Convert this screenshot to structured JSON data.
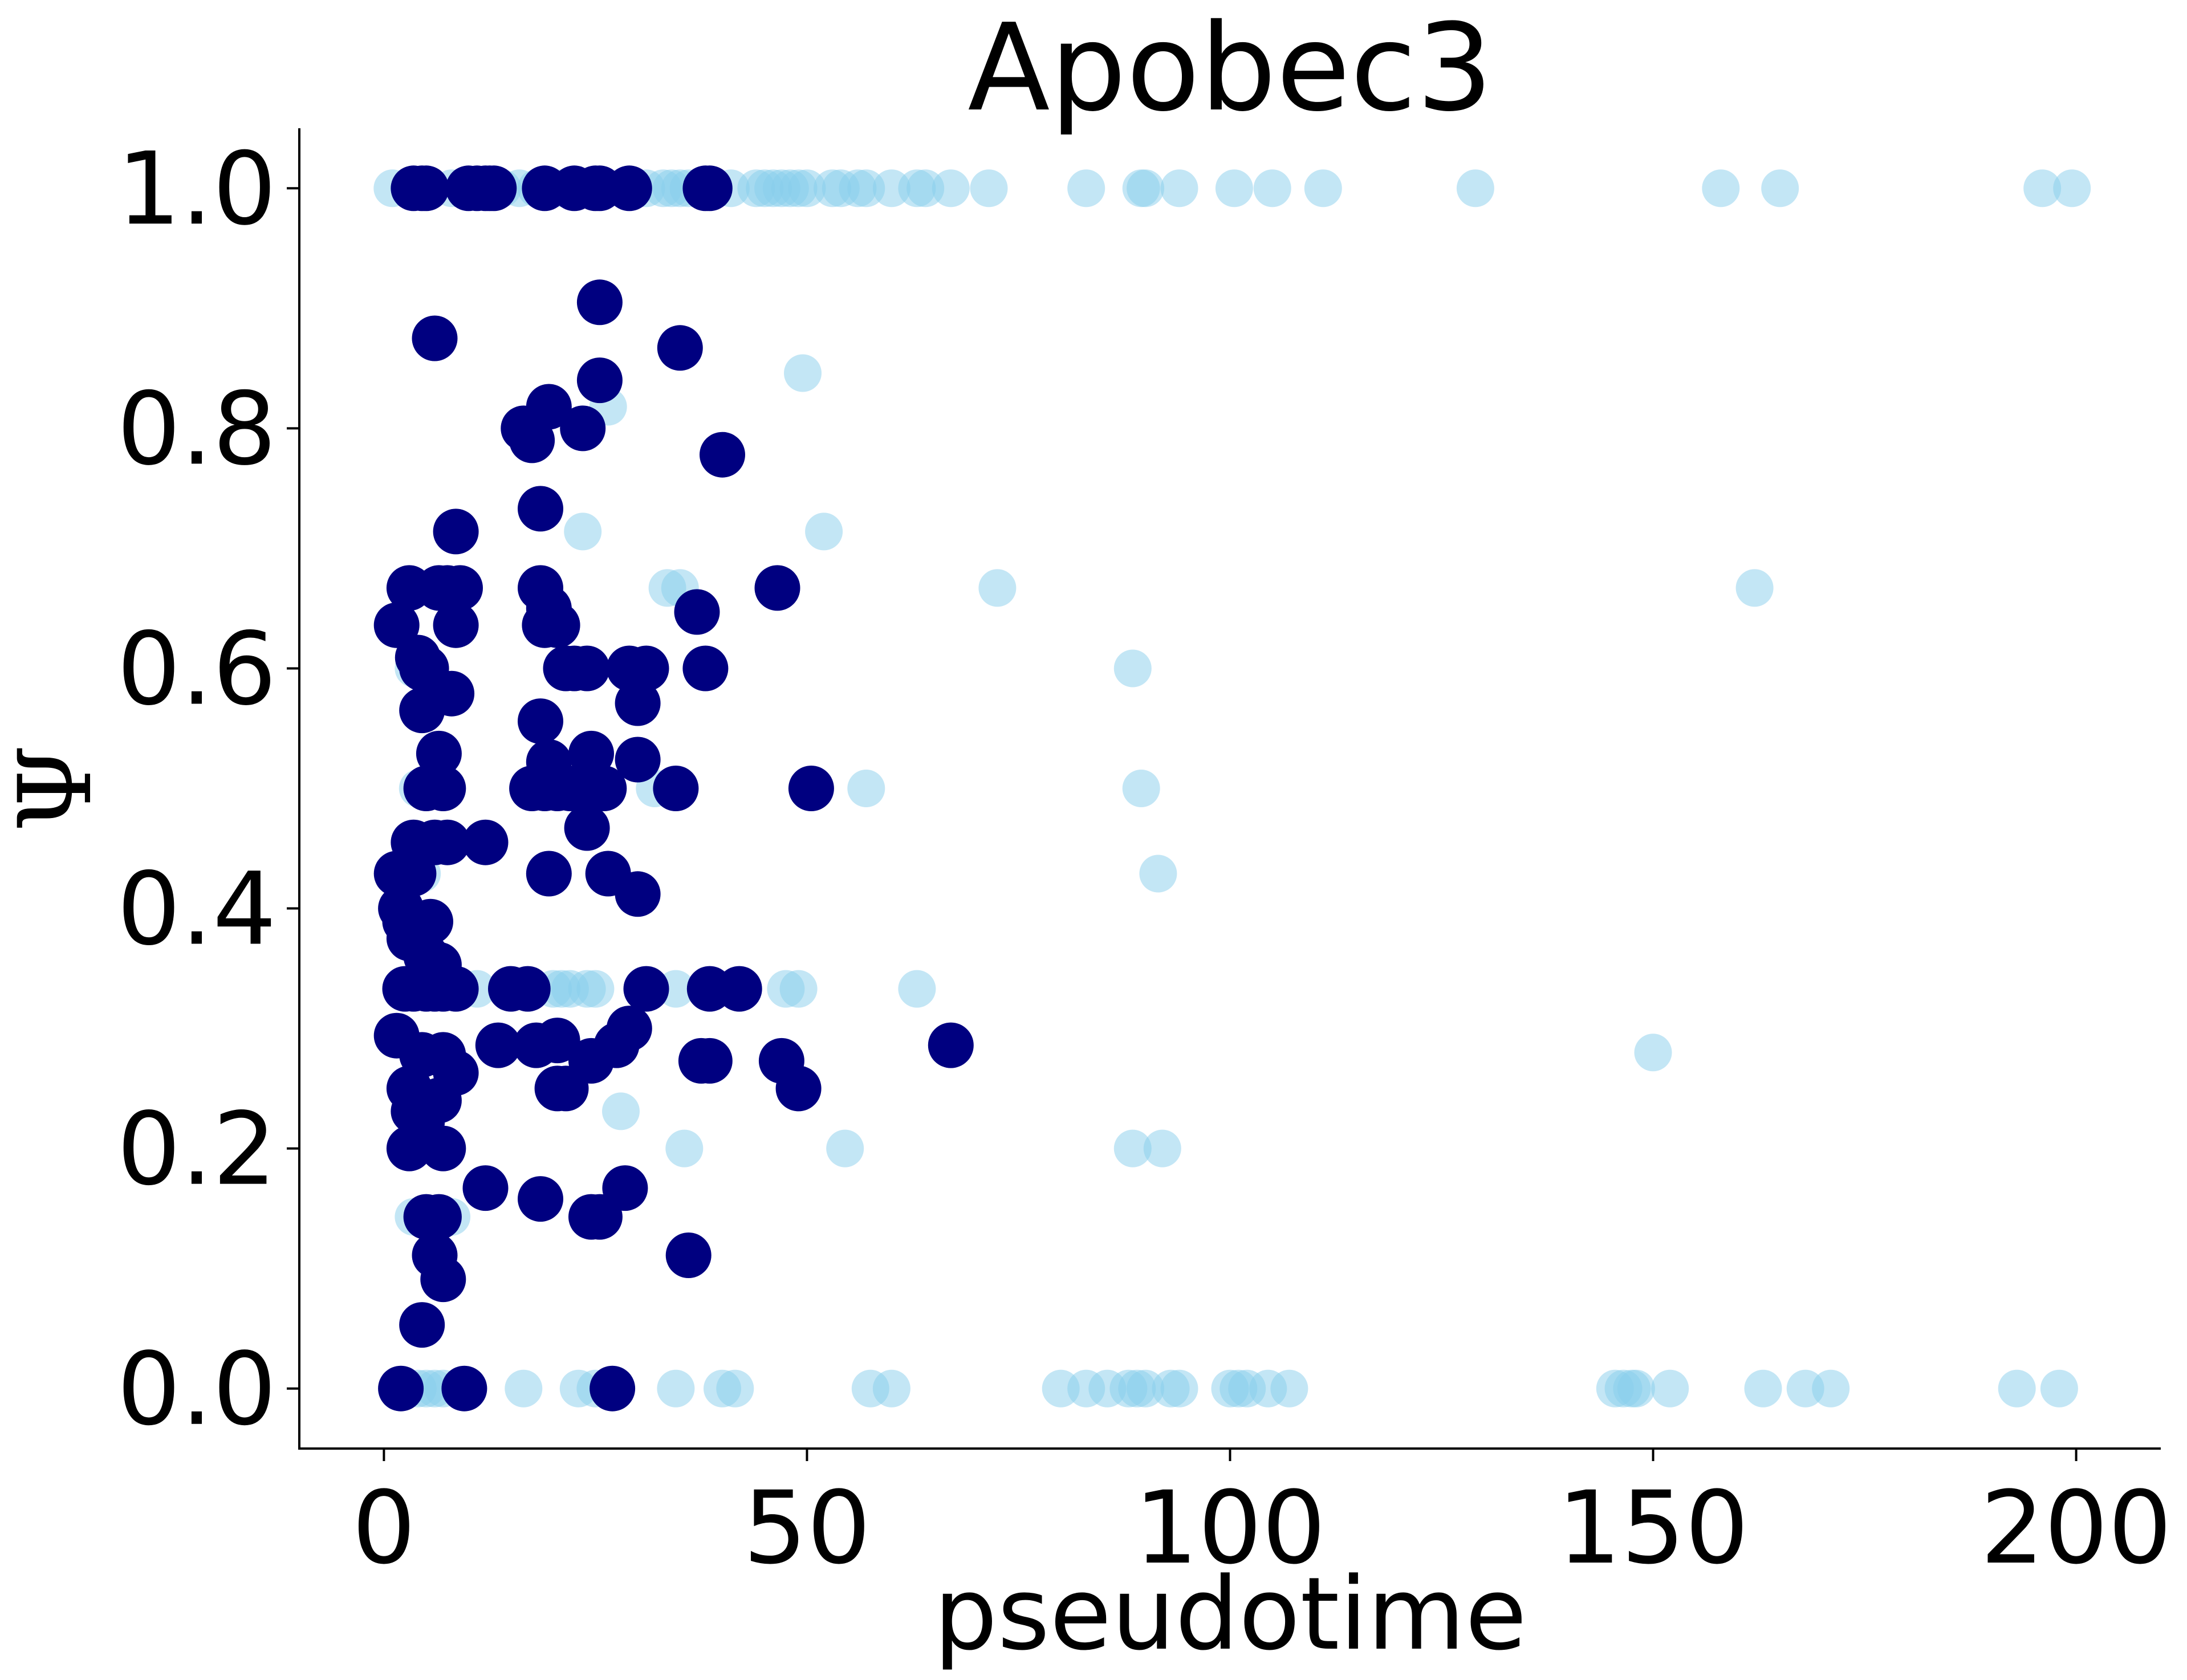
{
  "chart_data": {
    "type": "scatter",
    "title": "Apobec3",
    "xlabel": "pseudotime",
    "ylabel": "Ψ",
    "xlim": [
      -10,
      210
    ],
    "ylim": [
      -0.05,
      1.05
    ],
    "xticks": [
      0,
      50,
      100,
      150,
      200
    ],
    "xtick_labels": [
      "0",
      "50",
      "100",
      "150",
      "200"
    ],
    "yticks": [
      0.0,
      0.2,
      0.4,
      0.6,
      0.8,
      1.0
    ],
    "ytick_labels": [
      "0.0",
      "0.2",
      "0.4",
      "0.6",
      "0.8",
      "1.0"
    ],
    "grid": false,
    "legend": "none",
    "colors": {
      "light": "#87ceeb",
      "dark": "#000080"
    },
    "series": [
      {
        "color": "#87ceeb",
        "opacity": 0.5,
        "points": [
          [
            1,
            1.0
          ],
          [
            3,
            1.0
          ],
          [
            5,
            1.0
          ],
          [
            8,
            1.0
          ],
          [
            10,
            1.0
          ],
          [
            14,
            1.0
          ],
          [
            16,
            1.0
          ],
          [
            18,
            1.0
          ],
          [
            21,
            1.0
          ],
          [
            23,
            1.0
          ],
          [
            26,
            1.0
          ],
          [
            28,
            1.0
          ],
          [
            31,
            1.0
          ],
          [
            33,
            1.0
          ],
          [
            34,
            1.0
          ],
          [
            35,
            1.0
          ],
          [
            36,
            1.0
          ],
          [
            38,
            1.0
          ],
          [
            41,
            1.0
          ],
          [
            44,
            1.0
          ],
          [
            45,
            1.0
          ],
          [
            46,
            1.0
          ],
          [
            47,
            1.0
          ],
          [
            48,
            1.0
          ],
          [
            49,
            1.0
          ],
          [
            50,
            1.0
          ],
          [
            53,
            1.0
          ],
          [
            54,
            1.0
          ],
          [
            56,
            1.0
          ],
          [
            57,
            1.0
          ],
          [
            60,
            1.0
          ],
          [
            63,
            1.0
          ],
          [
            64,
            1.0
          ],
          [
            67,
            1.0
          ],
          [
            71.5,
            1.0
          ],
          [
            83,
            1.0
          ],
          [
            89.5,
            1.0
          ],
          [
            90,
            1.0
          ],
          [
            94,
            1.0
          ],
          [
            100.5,
            1.0
          ],
          [
            105,
            1.0
          ],
          [
            111,
            1.0
          ],
          [
            129,
            1.0
          ],
          [
            158,
            1.0
          ],
          [
            165,
            1.0
          ],
          [
            196,
            1.0
          ],
          [
            199.5,
            1.0
          ],
          [
            49.5,
            0.846
          ],
          [
            26.5,
            0.818
          ],
          [
            23.5,
            0.714
          ],
          [
            52,
            0.714
          ],
          [
            33.5,
            0.667
          ],
          [
            35,
            0.667
          ],
          [
            72.5,
            0.667
          ],
          [
            162,
            0.667
          ],
          [
            88.5,
            0.6
          ],
          [
            3.5,
            0.6
          ],
          [
            4,
            0.5
          ],
          [
            32,
            0.5
          ],
          [
            57,
            0.5
          ],
          [
            89.5,
            0.5
          ],
          [
            91.5,
            0.429
          ],
          [
            4.5,
            0.429
          ],
          [
            11,
            0.333
          ],
          [
            20,
            0.333
          ],
          [
            21,
            0.333
          ],
          [
            22,
            0.333
          ],
          [
            24,
            0.333
          ],
          [
            25,
            0.333
          ],
          [
            34.5,
            0.333
          ],
          [
            47.5,
            0.333
          ],
          [
            49,
            0.333
          ],
          [
            63,
            0.333
          ],
          [
            150,
            0.28
          ],
          [
            28,
            0.231
          ],
          [
            35.5,
            0.2
          ],
          [
            54.5,
            0.2
          ],
          [
            88.5,
            0.2
          ],
          [
            92,
            0.2
          ],
          [
            3.5,
            0.143
          ],
          [
            8,
            0.143
          ],
          [
            4,
            0.0
          ],
          [
            5,
            0.0
          ],
          [
            6,
            0.0
          ],
          [
            7,
            0.0
          ],
          [
            16.5,
            0.0
          ],
          [
            23,
            0.0
          ],
          [
            25,
            0.0
          ],
          [
            34.5,
            0.0
          ],
          [
            40,
            0.0
          ],
          [
            41.5,
            0.0
          ],
          [
            57.5,
            0.0
          ],
          [
            60,
            0.0
          ],
          [
            80,
            0.0
          ],
          [
            83,
            0.0
          ],
          [
            85.5,
            0.0
          ],
          [
            88,
            0.0
          ],
          [
            89,
            0.0
          ],
          [
            90,
            0.0
          ],
          [
            93,
            0.0
          ],
          [
            94,
            0.0
          ],
          [
            100,
            0.0
          ],
          [
            101,
            0.0
          ],
          [
            102,
            0.0
          ],
          [
            104.5,
            0.0
          ],
          [
            107,
            0.0
          ],
          [
            145.5,
            0.0
          ],
          [
            146.5,
            0.0
          ],
          [
            147.5,
            0.0
          ],
          [
            148,
            0.0
          ],
          [
            152,
            0.0
          ],
          [
            163,
            0.0
          ],
          [
            168,
            0.0
          ],
          [
            171,
            0.0
          ],
          [
            193,
            0.0
          ],
          [
            198,
            0.0
          ]
        ]
      },
      {
        "color": "#000080",
        "opacity": 1.0,
        "points": [
          [
            3.5,
            1.0
          ],
          [
            4.5,
            1.0
          ],
          [
            5,
            1.0
          ],
          [
            10,
            1.0
          ],
          [
            11,
            1.0
          ],
          [
            12,
            1.0
          ],
          [
            12.5,
            1.0
          ],
          [
            13,
            1.0
          ],
          [
            19,
            1.0
          ],
          [
            22.5,
            1.0
          ],
          [
            25,
            1.0
          ],
          [
            25.5,
            1.0
          ],
          [
            29,
            1.0
          ],
          [
            38,
            1.0
          ],
          [
            38.5,
            1.0
          ],
          [
            25.5,
            0.905
          ],
          [
            6,
            0.875
          ],
          [
            35,
            0.867
          ],
          [
            25.5,
            0.84
          ],
          [
            19.5,
            0.818
          ],
          [
            16.5,
            0.8
          ],
          [
            23.5,
            0.8
          ],
          [
            17.5,
            0.79
          ],
          [
            40,
            0.778
          ],
          [
            18.5,
            0.733
          ],
          [
            8.5,
            0.714
          ],
          [
            3,
            0.667
          ],
          [
            6.5,
            0.667
          ],
          [
            7.5,
            0.667
          ],
          [
            9,
            0.667
          ],
          [
            18.5,
            0.667
          ],
          [
            46.5,
            0.667
          ],
          [
            1.5,
            0.636
          ],
          [
            19,
            0.636
          ],
          [
            20.5,
            0.636
          ],
          [
            8.5,
            0.636
          ],
          [
            19.5,
            0.65
          ],
          [
            37,
            0.647
          ],
          [
            4,
            0.609
          ],
          [
            4.5,
            0.6
          ],
          [
            5,
            0.6
          ],
          [
            21.5,
            0.6
          ],
          [
            22.5,
            0.6
          ],
          [
            24,
            0.6
          ],
          [
            29,
            0.6
          ],
          [
            31,
            0.6
          ],
          [
            38,
            0.6
          ],
          [
            8,
            0.579
          ],
          [
            30,
            0.571
          ],
          [
            4.5,
            0.565
          ],
          [
            18.5,
            0.556
          ],
          [
            6.5,
            0.529
          ],
          [
            19.5,
            0.522
          ],
          [
            24.5,
            0.529
          ],
          [
            30,
            0.524
          ],
          [
            5,
            0.5
          ],
          [
            7,
            0.5
          ],
          [
            17.5,
            0.5
          ],
          [
            19,
            0.5
          ],
          [
            20.5,
            0.5
          ],
          [
            22,
            0.5
          ],
          [
            24,
            0.5
          ],
          [
            26,
            0.5
          ],
          [
            34.5,
            0.5
          ],
          [
            50.5,
            0.5
          ],
          [
            24,
            0.467
          ],
          [
            3.5,
            0.455
          ],
          [
            6,
            0.455
          ],
          [
            7.5,
            0.455
          ],
          [
            12,
            0.455
          ],
          [
            1.5,
            0.429
          ],
          [
            3.5,
            0.429
          ],
          [
            19.5,
            0.429
          ],
          [
            26.5,
            0.429
          ],
          [
            30,
            0.412
          ],
          [
            2,
            0.4
          ],
          [
            2.5,
            0.389
          ],
          [
            5.5,
            0.389
          ],
          [
            3,
            0.375
          ],
          [
            5,
            0.36
          ],
          [
            6.5,
            0.353
          ],
          [
            2.5,
            0.333
          ],
          [
            3.5,
            0.333
          ],
          [
            5,
            0.333
          ],
          [
            6,
            0.333
          ],
          [
            7,
            0.333
          ],
          [
            8.5,
            0.333
          ],
          [
            15,
            0.333
          ],
          [
            17,
            0.333
          ],
          [
            31,
            0.333
          ],
          [
            38.5,
            0.333
          ],
          [
            42,
            0.333
          ],
          [
            1.5,
            0.294
          ],
          [
            13.5,
            0.286
          ],
          [
            18,
            0.286
          ],
          [
            20.5,
            0.29
          ],
          [
            27.5,
            0.286
          ],
          [
            29,
            0.3
          ],
          [
            67,
            0.286
          ],
          [
            4.5,
            0.278
          ],
          [
            7,
            0.278
          ],
          [
            24.5,
            0.273
          ],
          [
            37.5,
            0.273
          ],
          [
            38.5,
            0.273
          ],
          [
            47,
            0.273
          ],
          [
            8.5,
            0.263
          ],
          [
            3,
            0.25
          ],
          [
            20.5,
            0.25
          ],
          [
            21.5,
            0.25
          ],
          [
            49,
            0.25
          ],
          [
            4.5,
            0.24
          ],
          [
            6.5,
            0.24
          ],
          [
            3.5,
            0.231
          ],
          [
            4.5,
            0.222
          ],
          [
            3,
            0.2
          ],
          [
            7,
            0.2
          ],
          [
            12,
            0.167
          ],
          [
            28.5,
            0.167
          ],
          [
            18.5,
            0.158
          ],
          [
            5,
            0.143
          ],
          [
            6.5,
            0.143
          ],
          [
            24.5,
            0.143
          ],
          [
            25.5,
            0.143
          ],
          [
            6,
            0.111
          ],
          [
            36,
            0.111
          ],
          [
            7,
            0.091
          ],
          [
            4.5,
            0.053
          ],
          [
            2,
            0.0
          ],
          [
            9.5,
            0.0
          ],
          [
            27,
            0.0
          ]
        ]
      }
    ]
  }
}
